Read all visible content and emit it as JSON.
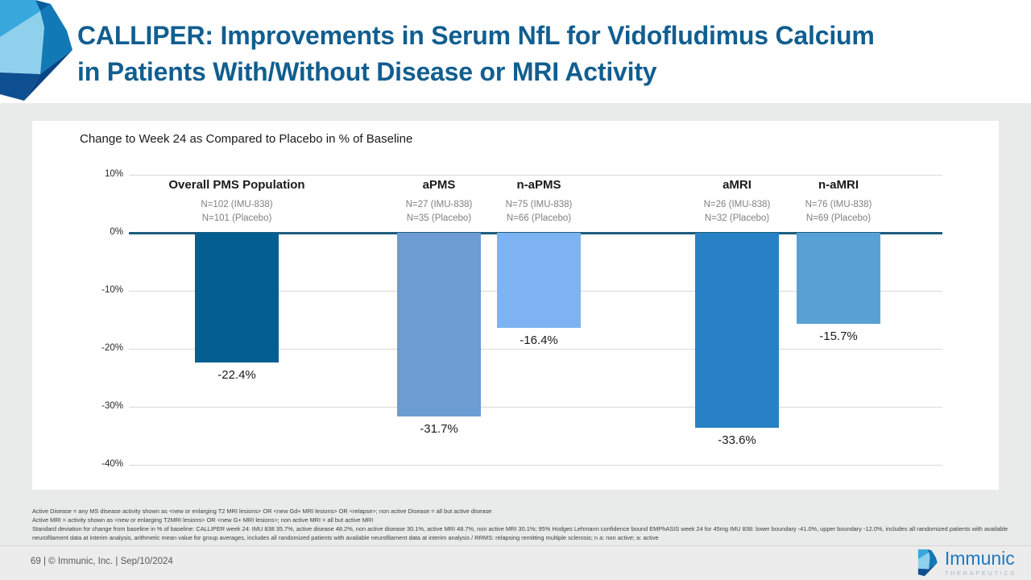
{
  "slide": {
    "title_line1": "CALLIPER: Improvements in Serum NfL for Vidofludimus Calcium",
    "title_line2": "in Patients With/Without Disease or MRI Activity",
    "footer_text": "69   |  © Immunic, Inc.   |  Sep/10/2024",
    "logo": {
      "name": "Immunic",
      "tagline": "THERAPEUTICS"
    }
  },
  "chart_data": {
    "type": "bar",
    "title": "Change to Week 24 as Compared to Placebo in % of Baseline",
    "categories": [
      "Overall PMS Population",
      "aPMS",
      "n-aPMS",
      "aMRI",
      "n-aMRI"
    ],
    "series": [
      {
        "name": "Change to Week 24 vs placebo in % of baseline",
        "values": [
          -22.4,
          -31.7,
          -16.4,
          -33.6,
          -15.7
        ]
      }
    ],
    "value_labels": [
      "-22.4%",
      "-31.7%",
      "-16.4%",
      "-33.6%",
      "-15.7%"
    ],
    "group_n_labels": [
      [
        "N=102 (IMU-838)",
        "N=101 (Placebo)"
      ],
      [
        "N=27 (IMU-838)",
        "N=35 (Placebo)"
      ],
      [
        "N=75 (IMU-838)",
        "N=66 (Placebo)"
      ],
      [
        "N=26 (IMU-838)",
        "N=32 (Placebo)"
      ],
      [
        "N=76 (IMU-838)",
        "N=69 (Placebo)"
      ]
    ],
    "bar_colors": [
      "#045e92",
      "#6b9cd2",
      "#7db3f2",
      "#2781c4",
      "#58a1d5"
    ],
    "yticks": [
      10,
      0,
      -10,
      -20,
      -30,
      -40
    ],
    "ytick_labels": [
      "10%",
      "0%",
      "-10%",
      "-20%",
      "-30%",
      "-40%"
    ],
    "ylim": [
      -40,
      10
    ],
    "grid": true,
    "legend": "none",
    "baseline_color": "#1b5c7d"
  },
  "footnotes": [
    "Active Disease = any MS disease activity shown as <new or enlarging T2 MRI lesions> OR <new Gd+ MRI lesions> OR <relapse>; non active Disease = all but active disease",
    "Active MRI = activity shown as <new or enlarging T2MRI lesions> OR <new G+ MRI lesions>; non active MRI = all but active MRI",
    "Standard deviation for change from baseline in % of baseline: CALLIPER week 24: IMU 838 35.7%, active disease 48.2%, non active disease 30.1%, active MRI 48.7%, non active MRI 30.1%; 95% Hodges Lehmann confidence bound EMPhASIS week 24 for 45mg IMU 838: lower boundary -41.0%, upper boundary -12.0%, includes all randomized patients with available",
    "neurofilament data at interim analysis, arithmetic mean value for group averages, includes all randomized patients with available neurofilament data at interim analysis / RRMS: relapsing remitting multiple sclerosis; n a: non active; a: active"
  ]
}
